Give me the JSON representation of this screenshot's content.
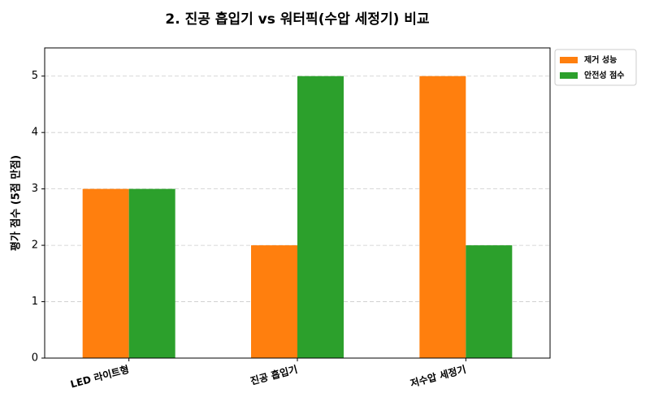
{
  "chart_data": {
    "type": "bar",
    "title": "2. 진공 흡입기 vs 워터픽(수압 세정기) 비교",
    "y_label": "평가 점수 (5점 만점)",
    "categories": [
      "LED 라이트형",
      "진공 흡입기",
      "저수압 세정기"
    ],
    "series": [
      {
        "name": "제거 성능",
        "color": "#ff7f0e",
        "values": [
          3,
          2,
          5
        ]
      },
      {
        "name": "안전성 점수",
        "color": "#2ca02c",
        "values": [
          3,
          5,
          2
        ]
      }
    ],
    "ylim": [
      0,
      5.5
    ],
    "yticks": [
      0,
      1,
      2,
      3,
      4,
      5
    ],
    "grid": true,
    "legend": "upper right outside"
  }
}
